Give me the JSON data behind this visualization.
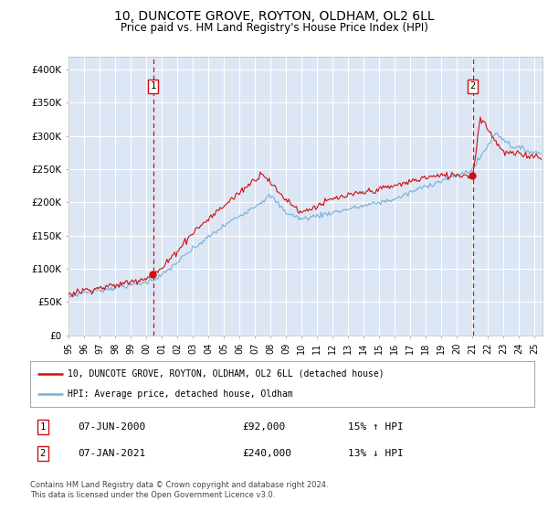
{
  "title": "10, DUNCOTE GROVE, ROYTON, OLDHAM, OL2 6LL",
  "subtitle": "Price paid vs. HM Land Registry's House Price Index (HPI)",
  "ylim": [
    0,
    420000
  ],
  "yticks": [
    0,
    50000,
    100000,
    150000,
    200000,
    250000,
    300000,
    350000,
    400000
  ],
  "ytick_labels": [
    "£0",
    "£50K",
    "£100K",
    "£150K",
    "£200K",
    "£250K",
    "£300K",
    "£350K",
    "£400K"
  ],
  "background_color": "#dce6f5",
  "grid_color": "#ffffff",
  "hpi_color": "#7bafd4",
  "price_color": "#cc1111",
  "annotation1": {
    "label": "1",
    "date_str": "07-JUN-2000",
    "price": "£92,000",
    "pct": "15% ↑ HPI",
    "x_year": 2000.44
  },
  "annotation2": {
    "label": "2",
    "date_str": "07-JAN-2021",
    "price": "£240,000",
    "pct": "13% ↓ HPI",
    "x_year": 2021.02
  },
  "legend_line1": "10, DUNCOTE GROVE, ROYTON, OLDHAM, OL2 6LL (detached house)",
  "legend_line2": "HPI: Average price, detached house, Oldham",
  "footer": "Contains HM Land Registry data © Crown copyright and database right 2024.\nThis data is licensed under the Open Government Licence v3.0.",
  "xmin": 1995.0,
  "xmax": 2025.5,
  "sale1_year": 2000.44,
  "sale1_price": 92000,
  "sale2_year": 2021.02,
  "sale2_price": 240000
}
